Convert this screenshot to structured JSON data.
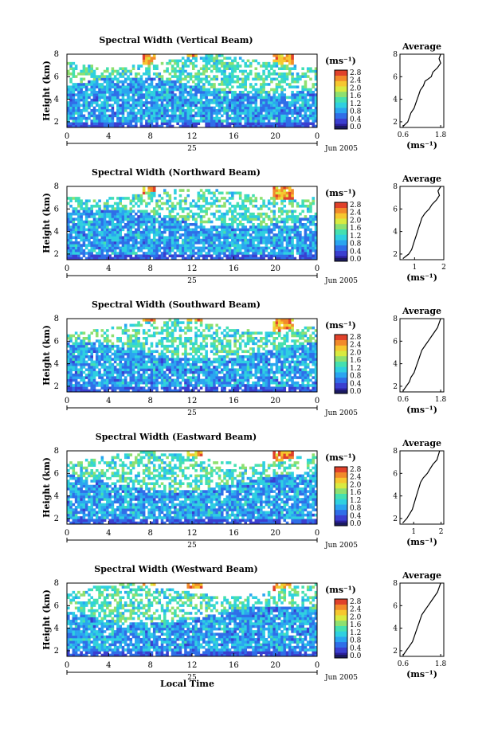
{
  "figure": {
    "x_axis_label": "Local Time",
    "date_label": "Jun 2005",
    "day_label": "25",
    "time_ticks": [
      "0",
      "4",
      "8",
      "12",
      "16",
      "20",
      "0"
    ],
    "y_axis_label": "Height (km)",
    "height_ticks": [
      "2",
      "4",
      "6",
      "8"
    ],
    "colorbar_unit": "(ms⁻¹)",
    "average_title": "Average",
    "average_unit": "(ms⁻¹)"
  },
  "colors": {
    "colormap": [
      "#2b1f9a",
      "#3a3fd0",
      "#2f6ee8",
      "#2aa5f0",
      "#2fd0e0",
      "#45e0b0",
      "#8ee070",
      "#d9ea40",
      "#f6c72f",
      "#f28a2a",
      "#e0412a"
    ],
    "colormap_floor": "#1a1a60"
  },
  "chart_data": [
    {
      "type": "heatmap",
      "title": "Spectral Width (Vertical Beam)",
      "colorbar_ticks": [
        "0.0",
        "0.4",
        "0.8",
        "1.2",
        "1.6",
        "2.0",
        "2.4",
        "2.8"
      ],
      "xlim": [
        0,
        24
      ],
      "ylim": [
        1.5,
        8
      ],
      "average_profile": {
        "xticks": [
          "0.6",
          "1.8"
        ],
        "xlim": [
          0.5,
          1.9
        ],
        "height": [
          1.6,
          2.0,
          2.4,
          2.8,
          3.2,
          3.6,
          4.0,
          4.4,
          4.8,
          5.2,
          5.6,
          6.0,
          6.4,
          6.8,
          7.2,
          7.6,
          8.0
        ],
        "width": [
          0.6,
          0.75,
          0.8,
          0.85,
          0.95,
          1.0,
          1.05,
          1.1,
          1.15,
          1.25,
          1.3,
          1.5,
          1.55,
          1.7,
          1.8,
          1.75,
          1.8
        ]
      }
    },
    {
      "type": "heatmap",
      "title": "Spectral Width (Northward Beam)",
      "colorbar_ticks": [
        "0.0",
        "0.4",
        "0.8",
        "1.2",
        "1.6",
        "2.0",
        "2.4",
        "2.8"
      ],
      "xlim": [
        0,
        24
      ],
      "ylim": [
        1.5,
        8
      ],
      "average_profile": {
        "xticks": [
          "1",
          "2"
        ],
        "xlim": [
          0.5,
          2.0
        ],
        "height": [
          1.6,
          2.0,
          2.4,
          2.8,
          3.2,
          3.6,
          4.0,
          4.4,
          4.8,
          5.2,
          5.6,
          6.0,
          6.4,
          6.8,
          7.2,
          7.6,
          8.0
        ],
        "width": [
          0.6,
          0.8,
          0.9,
          0.95,
          1.0,
          1.05,
          1.1,
          1.15,
          1.2,
          1.25,
          1.35,
          1.5,
          1.6,
          1.75,
          1.85,
          1.8,
          1.9
        ]
      }
    },
    {
      "type": "heatmap",
      "title": "Spectral Width (Southward Beam)",
      "colorbar_ticks": [
        "0.0",
        "0.4",
        "0.8",
        "1.2",
        "1.6",
        "2.0",
        "2.4",
        "2.8"
      ],
      "xlim": [
        0,
        24
      ],
      "ylim": [
        1.5,
        8
      ],
      "average_profile": {
        "xticks": [
          "0.6",
          "1.8"
        ],
        "xlim": [
          0.5,
          1.9
        ],
        "height": [
          1.6,
          2.0,
          2.4,
          2.8,
          3.2,
          3.6,
          4.0,
          4.4,
          4.8,
          5.2,
          5.6,
          6.0,
          6.4,
          6.8,
          7.2,
          7.6,
          8.0
        ],
        "width": [
          0.6,
          0.7,
          0.8,
          0.85,
          0.95,
          1.0,
          1.05,
          1.1,
          1.15,
          1.2,
          1.3,
          1.4,
          1.5,
          1.6,
          1.7,
          1.75,
          1.8
        ]
      }
    },
    {
      "type": "heatmap",
      "title": "Spectral Width (Eastward Beam)",
      "colorbar_ticks": [
        "0.0",
        "0.4",
        "0.8",
        "1.2",
        "1.6",
        "2.0",
        "2.4",
        "2.8"
      ],
      "xlim": [
        0,
        24
      ],
      "ylim": [
        1.5,
        8
      ],
      "average_profile": {
        "xticks": [
          "1",
          "2"
        ],
        "xlim": [
          0.5,
          2.1
        ],
        "height": [
          1.6,
          2.0,
          2.4,
          2.8,
          3.2,
          3.6,
          4.0,
          4.4,
          4.8,
          5.2,
          5.6,
          6.0,
          6.4,
          6.8,
          7.2,
          7.6,
          8.0
        ],
        "width": [
          0.6,
          0.75,
          0.85,
          0.95,
          1.0,
          1.05,
          1.1,
          1.15,
          1.2,
          1.25,
          1.35,
          1.5,
          1.6,
          1.7,
          1.85,
          1.9,
          1.95
        ]
      }
    },
    {
      "type": "heatmap",
      "title": "Spectral Width (Westward Beam)",
      "colorbar_ticks": [
        "0.0",
        "0.4",
        "0.8",
        "1.2",
        "1.6",
        "2.0",
        "2.4",
        "2.8"
      ],
      "xlim": [
        0,
        24
      ],
      "ylim": [
        1.5,
        8
      ],
      "average_profile": {
        "xticks": [
          "0.6",
          "1.8"
        ],
        "xlim": [
          0.5,
          1.9
        ],
        "height": [
          1.6,
          2.0,
          2.4,
          2.8,
          3.2,
          3.6,
          4.0,
          4.4,
          4.8,
          5.2,
          5.6,
          6.0,
          6.4,
          6.8,
          7.2,
          7.6,
          8.0
        ],
        "width": [
          0.6,
          0.7,
          0.8,
          0.9,
          0.95,
          1.0,
          1.05,
          1.1,
          1.15,
          1.2,
          1.3,
          1.4,
          1.5,
          1.6,
          1.7,
          1.75,
          1.8
        ]
      }
    }
  ]
}
